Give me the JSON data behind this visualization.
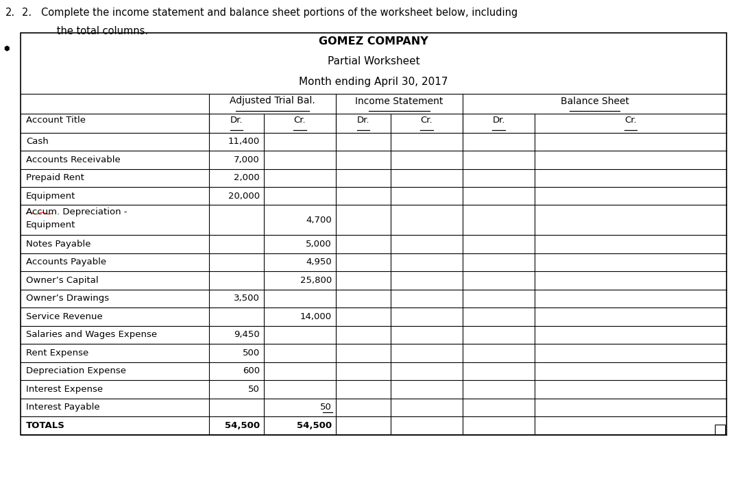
{
  "title_line1": "GOMEZ COMPANY",
  "title_line2": "Partial Worksheet",
  "title_line3": "Month ending April 30, 2017",
  "question_line1": "2.   Complete the income statement and balance sheet portions of the worksheet below, including",
  "question_line2": "      the total columns.",
  "col_headers_level1": [
    "Adjusted Trial Bal.",
    "Income Statement",
    "Balance Sheet"
  ],
  "col_headers_level2": [
    "Account Title",
    "Dr.",
    "Cr.",
    "Dr.",
    "Cr.",
    "Dr.",
    "Cr."
  ],
  "rows": [
    {
      "account": "Cash",
      "adj_dr": "11,400",
      "adj_cr": "",
      "is_dr": "",
      "is_cr": "",
      "bs_dr": "",
      "bs_cr": "",
      "two_line": false,
      "cr_underline": false,
      "is_total": false
    },
    {
      "account": "Accounts Receivable",
      "adj_dr": "7,000",
      "adj_cr": "",
      "is_dr": "",
      "is_cr": "",
      "bs_dr": "",
      "bs_cr": "",
      "two_line": false,
      "cr_underline": false,
      "is_total": false
    },
    {
      "account": "Prepaid Rent",
      "adj_dr": "2,000",
      "adj_cr": "",
      "is_dr": "",
      "is_cr": "",
      "bs_dr": "",
      "bs_cr": "",
      "two_line": false,
      "cr_underline": false,
      "is_total": false
    },
    {
      "account": "Equipment",
      "adj_dr": "20,000",
      "adj_cr": "",
      "is_dr": "",
      "is_cr": "",
      "bs_dr": "",
      "bs_cr": "",
      "two_line": false,
      "cr_underline": false,
      "is_total": false
    },
    {
      "account": "Accum. Depreciation -\nEquipment",
      "adj_dr": "",
      "adj_cr": "4,700",
      "is_dr": "",
      "is_cr": "",
      "bs_dr": "",
      "bs_cr": "",
      "two_line": true,
      "cr_underline": false,
      "is_total": false
    },
    {
      "account": "Notes Payable",
      "adj_dr": "",
      "adj_cr": "5,000",
      "is_dr": "",
      "is_cr": "",
      "bs_dr": "",
      "bs_cr": "",
      "two_line": false,
      "cr_underline": false,
      "is_total": false
    },
    {
      "account": "Accounts Payable",
      "adj_dr": "",
      "adj_cr": "4,950",
      "is_dr": "",
      "is_cr": "",
      "bs_dr": "",
      "bs_cr": "",
      "two_line": false,
      "cr_underline": false,
      "is_total": false
    },
    {
      "account": "Owner’s Capital",
      "adj_dr": "",
      "adj_cr": "25,800",
      "is_dr": "",
      "is_cr": "",
      "bs_dr": "",
      "bs_cr": "",
      "two_line": false,
      "cr_underline": false,
      "is_total": false
    },
    {
      "account": "Owner’s Drawings",
      "adj_dr": "3,500",
      "adj_cr": "",
      "is_dr": "",
      "is_cr": "",
      "bs_dr": "",
      "bs_cr": "",
      "two_line": false,
      "cr_underline": false,
      "is_total": false
    },
    {
      "account": "Service Revenue",
      "adj_dr": "",
      "adj_cr": "14,000",
      "is_dr": "",
      "is_cr": "",
      "bs_dr": "",
      "bs_cr": "",
      "two_line": false,
      "cr_underline": false,
      "is_total": false
    },
    {
      "account": "Salaries and Wages Expense",
      "adj_dr": "9,450",
      "adj_cr": "",
      "is_dr": "",
      "is_cr": "",
      "bs_dr": "",
      "bs_cr": "",
      "two_line": false,
      "cr_underline": false,
      "is_total": false
    },
    {
      "account": "Rent Expense",
      "adj_dr": "500",
      "adj_cr": "",
      "is_dr": "",
      "is_cr": "",
      "bs_dr": "",
      "bs_cr": "",
      "two_line": false,
      "cr_underline": false,
      "is_total": false
    },
    {
      "account": "Depreciation Expense",
      "adj_dr": "600",
      "adj_cr": "",
      "is_dr": "",
      "is_cr": "",
      "bs_dr": "",
      "bs_cr": "",
      "two_line": false,
      "cr_underline": false,
      "is_total": false
    },
    {
      "account": "Interest Expense",
      "adj_dr": "50",
      "adj_cr": "",
      "is_dr": "",
      "is_cr": "",
      "bs_dr": "",
      "bs_cr": "",
      "two_line": false,
      "cr_underline": false,
      "is_total": false
    },
    {
      "account": "Interest Payable",
      "adj_dr": "",
      "adj_cr": "50",
      "is_dr": "",
      "is_cr": "",
      "bs_dr": "",
      "bs_cr": "",
      "two_line": false,
      "cr_underline": true,
      "is_total": false
    },
    {
      "account": "TOTALS",
      "adj_dr": "54,500",
      "adj_cr": "54,500",
      "is_dr": "",
      "is_cr": "",
      "bs_dr": "",
      "bs_cr": "",
      "two_line": false,
      "cr_underline": false,
      "is_total": true
    }
  ],
  "bg_color": "#ffffff",
  "border_color": "#000000",
  "font_size": 9.5,
  "header_font_size": 10.5,
  "title_font_size": 11.5
}
